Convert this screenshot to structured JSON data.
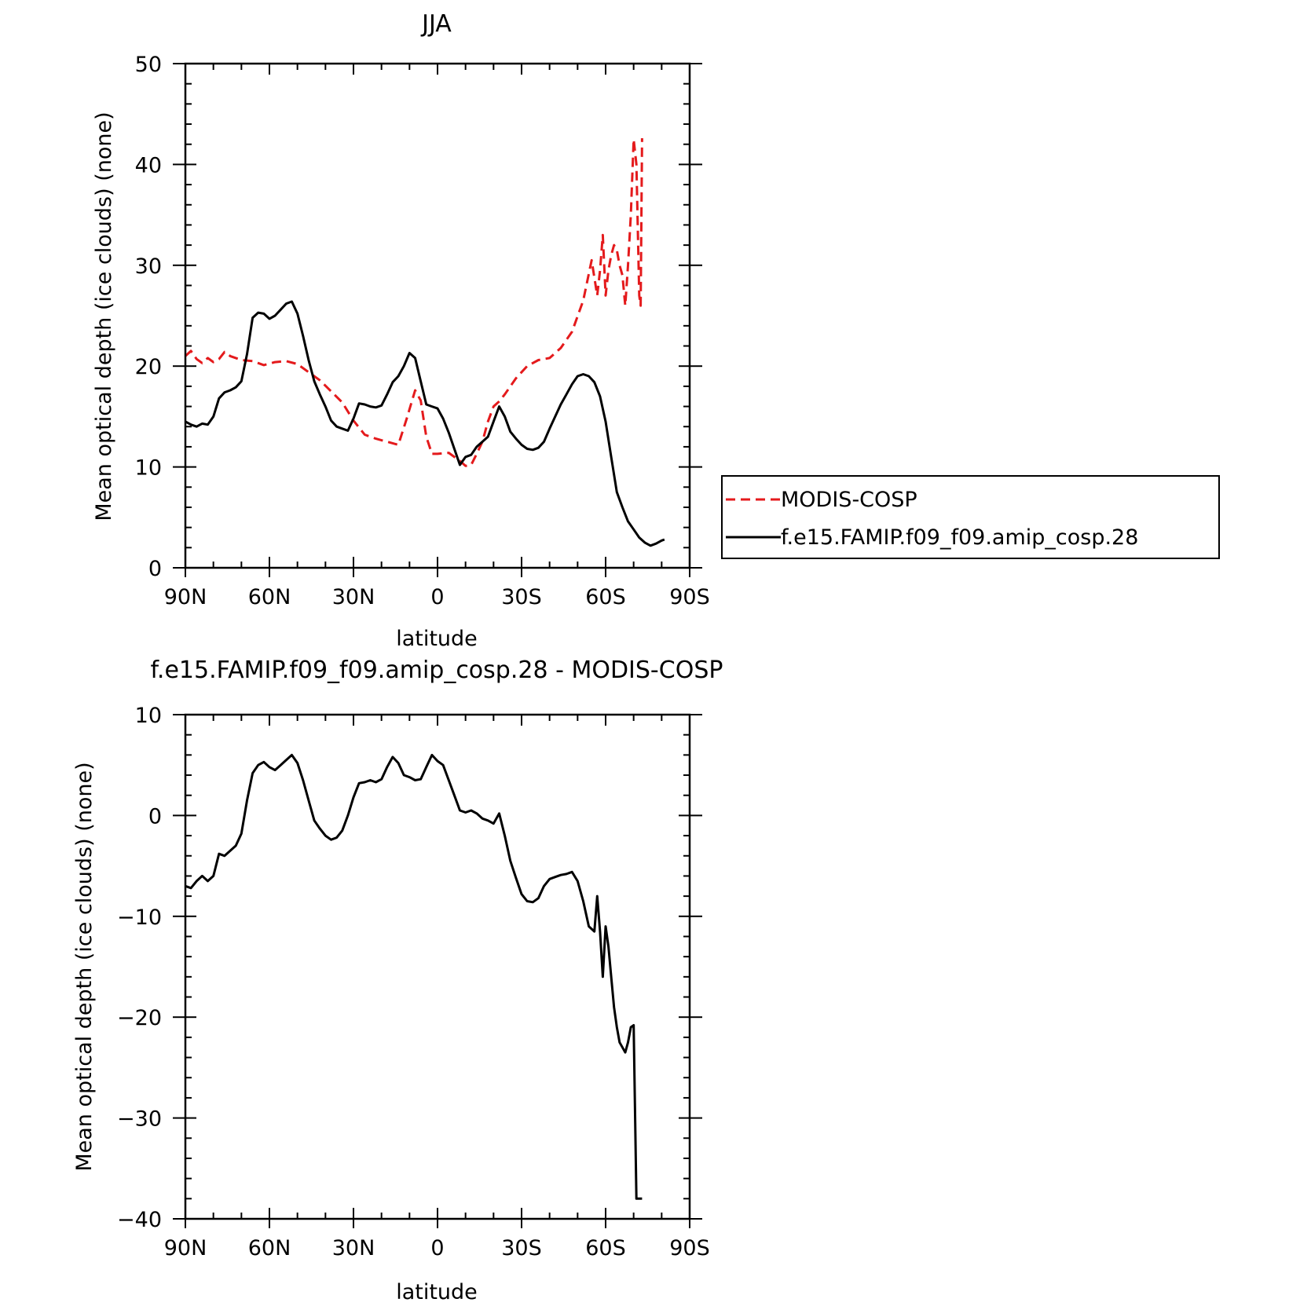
{
  "chart_data": [
    {
      "type": "line",
      "title": "JJA",
      "xlabel": "latitude",
      "ylabel": "Mean optical depth (ice clouds) (none)",
      "xlim": [
        90,
        -90
      ],
      "ylim": [
        0,
        50
      ],
      "x_ticks": [
        90,
        60,
        30,
        0,
        -30,
        -60,
        -90
      ],
      "x_tick_labels": [
        "90N",
        "60N",
        "30N",
        "0",
        "30S",
        "60S",
        "90S"
      ],
      "y_ticks": [
        0,
        10,
        20,
        30,
        40,
        50
      ],
      "y_tick_labels": [
        "0",
        "10",
        "20",
        "30",
        "40",
        "50"
      ],
      "grid": false,
      "legend_position": "right",
      "series": [
        {
          "name": "MODIS-COSP",
          "color": "#e41a1c",
          "dash": "dashed",
          "x": [
            90,
            88,
            86,
            84,
            82,
            80,
            78,
            76,
            74,
            72,
            70,
            66,
            62,
            58,
            54,
            50,
            46,
            42,
            38,
            34,
            30,
            26,
            22,
            18,
            14,
            11,
            8,
            6,
            4,
            2,
            0,
            -4,
            -8,
            -10,
            -12,
            -14,
            -16,
            -18,
            -20,
            -22,
            -24,
            -28,
            -32,
            -36,
            -40,
            -44,
            -48,
            -52,
            -55,
            -57,
            -58,
            -59,
            -60,
            -61,
            -62,
            -63,
            -64,
            -65,
            -66,
            -67,
            -68,
            -69,
            -70,
            -71,
            -72,
            -72.5,
            -73
          ],
          "y": [
            21,
            21.5,
            20.7,
            20.3,
            20.8,
            20.4,
            20.7,
            21.4,
            21.0,
            20.8,
            20.6,
            20.5,
            20.1,
            20.4,
            20.5,
            20.2,
            19.4,
            18.6,
            17.5,
            16.4,
            14.6,
            13.2,
            12.8,
            12.5,
            12.2,
            14.8,
            17.6,
            16.6,
            13.0,
            11.3,
            11.3,
            11.4,
            10.6,
            10.1,
            10.2,
            11.3,
            12.5,
            14.5,
            16.0,
            16.5,
            17.2,
            18.8,
            20.0,
            20.6,
            20.8,
            21.8,
            23.4,
            26.5,
            30.5,
            27.0,
            29.5,
            33.0,
            27.0,
            29.5,
            31.0,
            32.0,
            31.5,
            30.0,
            29.0,
            26.0,
            30.0,
            35.0,
            42.5,
            40.0,
            27.0,
            26.0,
            42.6
          ]
        },
        {
          "name": "f.e15.FAMIP.f09_f09.amip_cosp.28",
          "color": "#000000",
          "dash": "solid",
          "x": [
            90,
            88,
            86,
            84,
            82,
            80,
            78,
            76,
            74,
            72,
            70,
            68,
            66,
            64,
            62,
            60,
            58,
            56,
            54,
            52,
            50,
            48,
            46,
            44,
            42,
            40,
            38,
            36,
            34,
            32,
            30,
            28,
            26,
            24,
            22,
            20,
            18,
            16,
            14,
            12,
            10,
            8,
            6,
            4,
            2,
            0,
            -2,
            -4,
            -6,
            -8,
            -10,
            -12,
            -14,
            -16,
            -18,
            -20,
            -22,
            -24,
            -26,
            -28,
            -30,
            -32,
            -34,
            -36,
            -38,
            -40,
            -42,
            -44,
            -46,
            -48,
            -50,
            -52,
            -54,
            -56,
            -58,
            -60,
            -62,
            -64,
            -66,
            -68,
            -70,
            -72,
            -74,
            -76,
            -78,
            -80,
            -81
          ],
          "y": [
            14.5,
            14.2,
            14.0,
            14.3,
            14.2,
            15.0,
            16.8,
            17.4,
            17.6,
            17.9,
            18.5,
            21.2,
            24.8,
            25.3,
            25.2,
            24.7,
            25.0,
            25.6,
            26.2,
            26.4,
            25.2,
            23.0,
            20.6,
            18.5,
            17.2,
            16.0,
            14.6,
            14.0,
            13.8,
            13.6,
            14.8,
            16.3,
            16.2,
            16.0,
            15.9,
            16.1,
            17.2,
            18.4,
            19.0,
            20.0,
            21.3,
            20.8,
            18.5,
            16.2,
            16.0,
            15.8,
            14.8,
            13.4,
            11.8,
            10.2,
            11.0,
            11.2,
            12.0,
            12.5,
            13.0,
            14.5,
            16.0,
            15.0,
            13.5,
            12.8,
            12.2,
            11.8,
            11.7,
            11.9,
            12.5,
            13.8,
            15.0,
            16.2,
            17.2,
            18.2,
            19.0,
            19.2,
            19.0,
            18.4,
            17.0,
            14.5,
            11.0,
            7.5,
            6.0,
            4.6,
            3.8,
            3.0,
            2.5,
            2.2,
            2.4,
            2.7,
            2.8
          ]
        }
      ]
    },
    {
      "type": "line",
      "title": "f.e15.FAMIP.f09_f09.amip_cosp.28 - MODIS-COSP",
      "xlabel": "latitude",
      "ylabel": "Mean optical depth (ice clouds) (none)",
      "xlim": [
        90,
        -90
      ],
      "ylim": [
        -40,
        10
      ],
      "x_ticks": [
        90,
        60,
        30,
        0,
        -30,
        -60,
        -90
      ],
      "x_tick_labels": [
        "90N",
        "60N",
        "30N",
        "0",
        "30S",
        "60S",
        "90S"
      ],
      "y_ticks": [
        -40,
        -30,
        -20,
        -10,
        0,
        10
      ],
      "y_tick_labels": [
        "−40",
        "−30",
        "−20",
        "−10",
        "0",
        "10"
      ],
      "grid": false,
      "series": [
        {
          "name": "",
          "color": "#000000",
          "dash": "solid",
          "x": [
            90,
            88,
            86,
            84,
            82,
            80,
            78,
            76,
            74,
            72,
            70,
            68,
            66,
            64,
            62,
            60,
            58,
            56,
            54,
            52,
            50,
            48,
            46,
            44,
            42,
            40,
            38,
            36,
            34,
            32,
            30,
            28,
            26,
            24,
            22,
            20,
            18,
            16,
            14,
            12,
            10,
            8,
            6,
            4,
            2,
            0,
            -2,
            -4,
            -6,
            -8,
            -10,
            -12,
            -14,
            -16,
            -18,
            -20,
            -22,
            -24,
            -26,
            -28,
            -30,
            -32,
            -34,
            -36,
            -38,
            -40,
            -42,
            -44,
            -46,
            -48,
            -50,
            -52,
            -54,
            -56,
            -57,
            -58,
            -59,
            -60,
            -61,
            -62,
            -63,
            -64,
            -65,
            -66,
            -67,
            -68,
            -69,
            -70,
            -71,
            -72,
            -72.5,
            -73
          ],
          "y": [
            -7.0,
            -7.2,
            -6.5,
            -6.0,
            -6.5,
            -6.0,
            -3.8,
            -4.0,
            -3.5,
            -3.0,
            -1.8,
            1.5,
            4.2,
            5.0,
            5.3,
            4.8,
            4.5,
            5.0,
            5.5,
            6.0,
            5.2,
            3.5,
            1.5,
            -0.5,
            -1.3,
            -2.0,
            -2.4,
            -2.2,
            -1.5,
            0.0,
            1.8,
            3.2,
            3.3,
            3.5,
            3.3,
            3.6,
            4.8,
            5.8,
            5.2,
            4.0,
            3.8,
            3.5,
            3.6,
            4.8,
            6.0,
            5.4,
            5.0,
            3.5,
            2.0,
            0.5,
            0.3,
            0.5,
            0.2,
            -0.3,
            -0.5,
            -0.8,
            0.2,
            -2.0,
            -4.5,
            -6.2,
            -7.8,
            -8.5,
            -8.6,
            -8.2,
            -7.0,
            -6.3,
            -6.1,
            -5.9,
            -5.8,
            -5.6,
            -6.5,
            -8.5,
            -11.0,
            -11.5,
            -8.0,
            -11.5,
            -16.0,
            -11.0,
            -13.0,
            -16.0,
            -19.0,
            -21.0,
            -22.5,
            -23.0,
            -23.5,
            -22.5,
            -21.0,
            -20.8,
            -38.0,
            -38.0,
            -38.0,
            -38.0
          ]
        }
      ]
    }
  ]
}
